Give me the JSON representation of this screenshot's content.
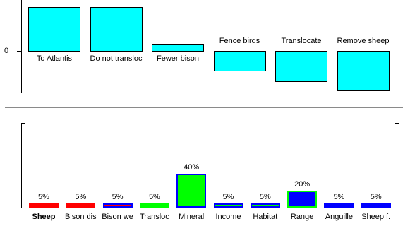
{
  "top_chart": {
    "zero_label": "0",
    "items": [
      {
        "label": "To Atlantis",
        "value": 62,
        "label_pos": "below"
      },
      {
        "label": "Do not transloc",
        "value": 62,
        "label_pos": "below"
      },
      {
        "label": "Fewer bison",
        "value": 9,
        "label_pos": "below"
      },
      {
        "label": "Fence birds",
        "value": -28,
        "label_pos": "above"
      },
      {
        "label": "Translocate",
        "value": -43,
        "label_pos": "above"
      },
      {
        "label": "Remove sheep",
        "value": -56,
        "label_pos": "above"
      }
    ],
    "color": "#00ffff"
  },
  "bottom_chart": {
    "items": [
      {
        "label": "Sheep",
        "value": 5,
        "pct_label": "5%",
        "fill": "#ff0000",
        "edge": "#ff0000",
        "bold": true
      },
      {
        "label": "Bison dis",
        "value": 5,
        "pct_label": "5%",
        "fill": "#ff0000",
        "edge": "#ff0000",
        "bold": false
      },
      {
        "label": "Bison we",
        "value": 5,
        "pct_label": "5%",
        "fill": "#ff0000",
        "edge": "#0000ff",
        "bold": false
      },
      {
        "label": "Transloc",
        "value": 5,
        "pct_label": "5%",
        "fill": "#00ff00",
        "edge": "#00ff00",
        "bold": false
      },
      {
        "label": "Mineral",
        "value": 40,
        "pct_label": "40%",
        "fill": "#00ff00",
        "edge": "#0000ff",
        "bold": false
      },
      {
        "label": "Income",
        "value": 5,
        "pct_label": "5%",
        "fill": "#00ff00",
        "edge": "#0000ff",
        "bold": false
      },
      {
        "label": "Habitat",
        "value": 5,
        "pct_label": "5%",
        "fill": "#00ff00",
        "edge": "#0000ff",
        "bold": false
      },
      {
        "label": "Range",
        "value": 20,
        "pct_label": "20%",
        "fill": "#0000ff",
        "edge": "#00ff00",
        "bold": false
      },
      {
        "label": "Anguille",
        "value": 5,
        "pct_label": "5%",
        "fill": "#0000ff",
        "edge": "#0000ff",
        "bold": false
      },
      {
        "label": "Sheep f.",
        "value": 5,
        "pct_label": "5%",
        "fill": "#0000ff",
        "edge": "#0000ff",
        "bold": false
      }
    ]
  }
}
